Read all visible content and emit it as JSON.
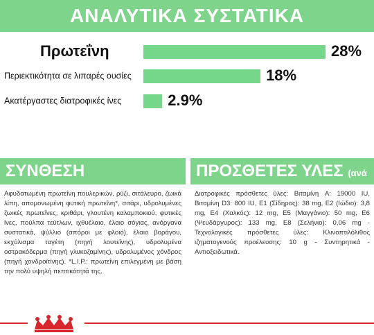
{
  "chart_data": {
    "type": "bar",
    "title": "ΑΝΑΛΥΤΙΚΑ ΣΥΣΤΑΤΙΚΑ",
    "categories": [
      "Πρωτεΐνη",
      "Περιεκτικότητα σε λιπαρές ουσίες",
      "Ακατέργαστες διατροφικές ίνες"
    ],
    "values": [
      28,
      18,
      2.9
    ],
    "value_labels": [
      "28%",
      "18%",
      "2.9%"
    ],
    "color": "#76d68a"
  },
  "composition": {
    "title": "ΣΥΝΘΕΣΗ",
    "text": "Αφυδατωμένη πρωτεΐνη πουλερικών, ρύζι, σιτάλευρο, ζωικά λίπη, απομονωμένη φυτική πρωτεΐνη*, σιτάρι, υδρολυμένες ζωικές πρωτεΐνες, κριθάρι, γλουτένη καλαμποκιού, φυτικές ίνες, πούλπα τεύτλων, ιχθυέλαιο, έλαιο σόγιας, ανόργανα συστατικά, ψύλλιο (σπόροι με φλοιό), έλαιο βοράγου, εκχύλισμα ταγέτη (πηγή λουτεΐνης), υδρολυμένα οστρακόδερμα (πηγή γλυκοζαμίνης), υδρολυμένος χόνδρος (πηγή χονδροϊτίνης). *L.I.P.: πρωτεΐνη επιλεγμένη με βάση την πολύ υψηλή πεπτικότητά της."
  },
  "additives": {
    "title": "ΠΡΟΣΘΕΤΕΣ ΥΛΕΣ",
    "unit": "(ανά kg)",
    "text": "Διατροφικές πρόσθετες ύλες: Βιταμίνη A: 19000 IU, Βιταμίνη D3: 800 IU, E1 (Σίδηρος): 38 mg, E2 (Ιώδιο): 3,8 mg, E4 (Χαλκός): 12 mg, E5 (Μαγγάνιο): 50 mg, E6 (Ψευδάργυρος): 133 mg, E8 (Σελήνιο): 0,06 mg - Τεχνολογικές πρόσθετες ύλες: Κλινοπτιλόλιθος ιζηματογενούς προέλευσης: 10 g - Συντηρητικά - Αντιοξειδωτικά."
  }
}
